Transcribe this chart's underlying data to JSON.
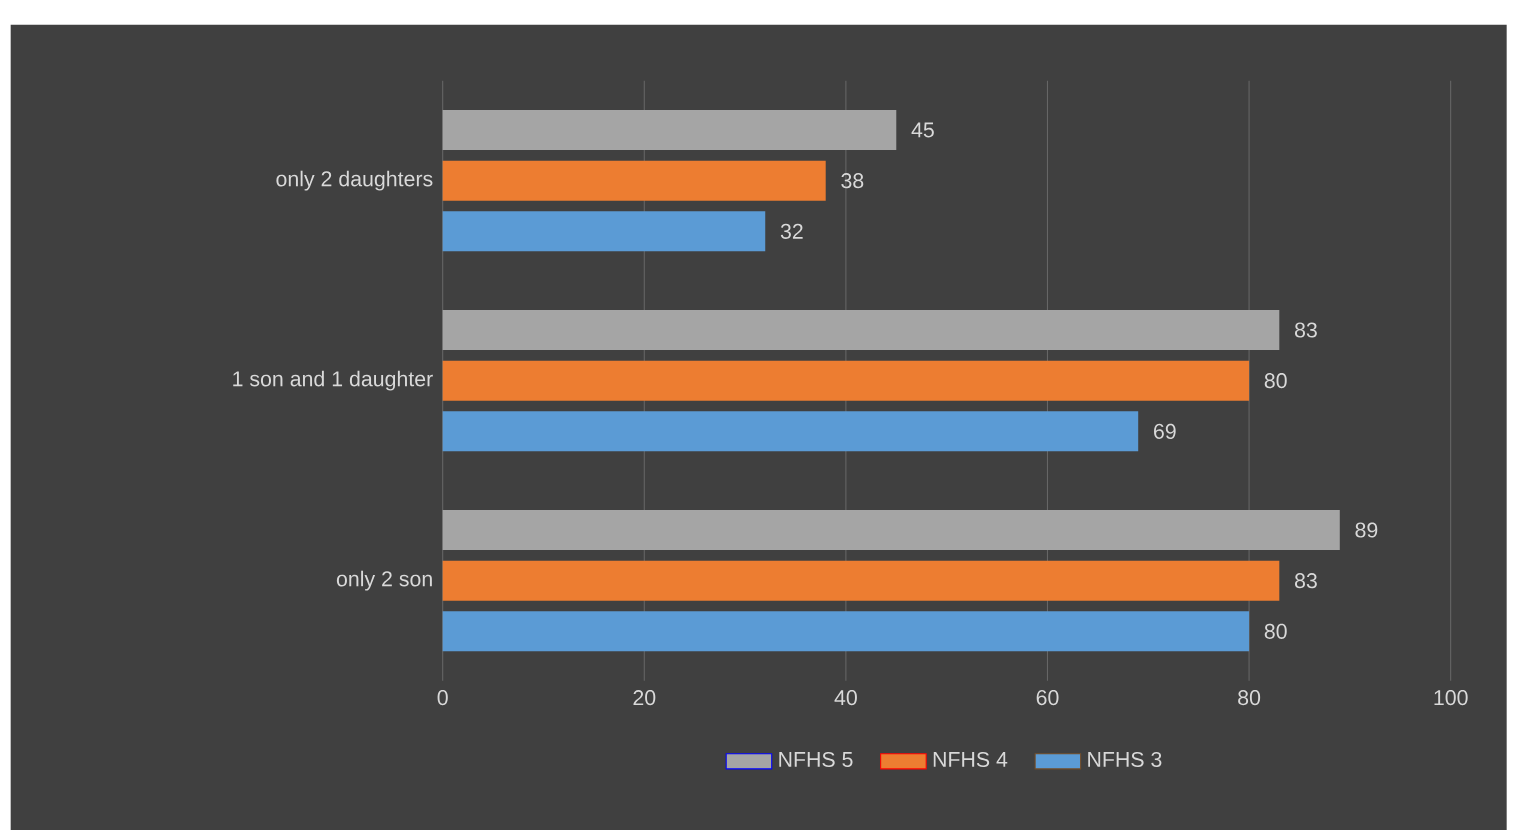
{
  "chart_data": {
    "type": "bar",
    "orientation": "horizontal",
    "categories": [
      "only 2 daughters",
      "1 son and 1 daughter",
      "only 2 son"
    ],
    "series": [
      {
        "name": "NFHS 5",
        "color": "#a5a5a5",
        "values": [
          45,
          83,
          89
        ]
      },
      {
        "name": "NFHS 4",
        "color": "#ed7d31",
        "values": [
          38,
          80,
          83
        ]
      },
      {
        "name": "NFHS 3",
        "color": "#5b9bd5",
        "values": [
          32,
          69,
          80
        ]
      }
    ],
    "xlim": [
      0,
      100
    ],
    "xticks": [
      0,
      20,
      40,
      60,
      80,
      100
    ],
    "grid": "x",
    "legend": "bottom",
    "data_labels": true
  }
}
